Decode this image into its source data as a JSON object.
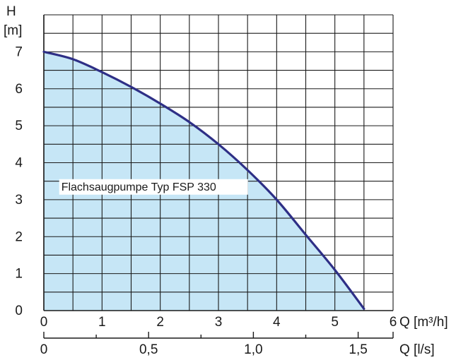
{
  "chart_data": {
    "type": "area",
    "y_axis": {
      "label_line1": "H",
      "label_line2": "[m]",
      "range": [
        0,
        8
      ],
      "ticks": [
        0,
        1,
        2,
        3,
        4,
        5,
        6,
        7
      ]
    },
    "x_axis_primary": {
      "label": "Q [m³/h]",
      "range": [
        0,
        6
      ],
      "ticks": [
        0,
        1,
        2,
        3,
        4,
        5
      ],
      "tick_labels": [
        "0",
        "1",
        "2",
        "3",
        "4",
        "5"
      ],
      "end_label": "6",
      "minor_step": 0.5
    },
    "x_axis_secondary": {
      "label": "Q [l/s]",
      "range": [
        0,
        1.6667
      ],
      "major_ticks": [
        0,
        0.5,
        1.0,
        1.5
      ],
      "tick_labels": [
        "0",
        "0,5",
        "1,0",
        "1,5"
      ],
      "minor_step": 0.25
    },
    "grid": true,
    "grid_minor_y_step": 0.5,
    "series": [
      {
        "name": "Flachsaugpumpe Typ FSP 330",
        "color": "#2e2f86",
        "fill": "#c6e6f6",
        "points": [
          {
            "x": 0,
            "y": 7.0
          },
          {
            "x": 0.5,
            "y": 6.8
          },
          {
            "x": 1.0,
            "y": 6.45
          },
          {
            "x": 1.5,
            "y": 6.05
          },
          {
            "x": 2.0,
            "y": 5.6
          },
          {
            "x": 2.5,
            "y": 5.1
          },
          {
            "x": 3.0,
            "y": 4.5
          },
          {
            "x": 3.5,
            "y": 3.8
          },
          {
            "x": 4.0,
            "y": 3.0
          },
          {
            "x": 4.5,
            "y": 2.05
          },
          {
            "x": 5.0,
            "y": 1.1
          },
          {
            "x": 5.5,
            "y": 0.05
          }
        ]
      }
    ]
  }
}
